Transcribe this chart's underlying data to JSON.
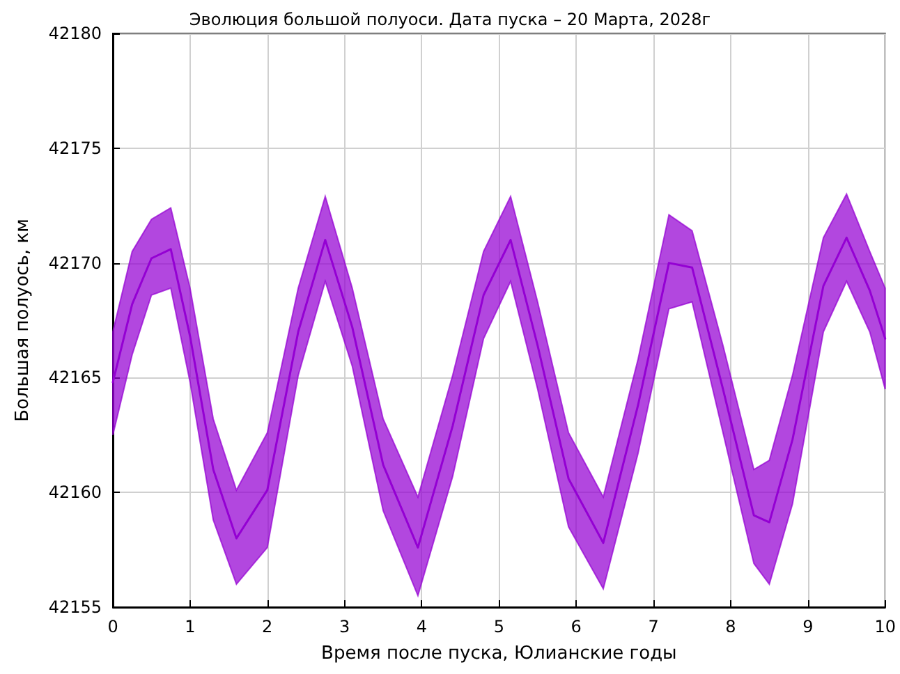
{
  "chart_data": {
    "type": "line",
    "title": "Эволюция большой полуоси. Дата пуска – 20 Марта, 2028г",
    "xlabel": "Время после пуска, Юлианские годы",
    "ylabel": "Большая полуось, км",
    "xlim": [
      0,
      10
    ],
    "xticks": [
      0,
      1,
      2,
      3,
      4,
      5,
      6,
      7,
      8,
      9,
      10
    ],
    "ylim": [
      42155,
      42180
    ],
    "yticks": [
      42155,
      42160,
      42165,
      42170,
      42175,
      42180
    ],
    "grid": true,
    "marker": "none",
    "series": [
      {
        "color": "#9400d3",
        "x": [
          0,
          0.25,
          0.5,
          0.75,
          1.0,
          1.3,
          1.6,
          2.0,
          2.4,
          2.75,
          3.1,
          3.5,
          3.95,
          4.4,
          4.8,
          5.15,
          5.5,
          5.9,
          6.35,
          6.8,
          7.2,
          7.5,
          7.9,
          8.3,
          8.5,
          8.8,
          9.2,
          9.5,
          9.8,
          10
        ],
        "values": [
          42164.8,
          42168.2,
          42170.2,
          42170.6,
          42166.8,
          42161.0,
          42158.0,
          42160.1,
          42167.0,
          42171.0,
          42167.2,
          42161.2,
          42157.6,
          42162.9,
          42168.6,
          42171.0,
          42166.4,
          42160.6,
          42157.8,
          42163.8,
          42170.0,
          42169.8,
          42164.5,
          42159.0,
          42158.7,
          42162.3,
          42169.0,
          42171.1,
          42168.8,
          42166.7
        ],
        "upper": [
          42167.0,
          42170.5,
          42171.9,
          42172.4,
          42168.9,
          42163.2,
          42160.1,
          42162.6,
          42168.9,
          42172.9,
          42168.9,
          42163.2,
          42159.8,
          42165.1,
          42170.5,
          42172.9,
          42168.3,
          42162.6,
          42159.8,
          42165.8,
          42172.1,
          42171.4,
          42166.4,
          42161.0,
          42161.4,
          42165.1,
          42171.1,
          42173.0,
          42170.5,
          42168.9
        ],
        "lower": [
          42162.5,
          42166.0,
          42168.6,
          42168.9,
          42164.8,
          42158.8,
          42156.0,
          42157.6,
          42165.1,
          42169.2,
          42165.5,
          42159.2,
          42155.5,
          42160.7,
          42166.7,
          42169.2,
          42164.5,
          42158.5,
          42155.8,
          42161.7,
          42168.0,
          42168.3,
          42162.6,
          42156.9,
          42156.0,
          42159.5,
          42167.0,
          42169.2,
          42167.0,
          42164.5
        ]
      }
    ]
  }
}
